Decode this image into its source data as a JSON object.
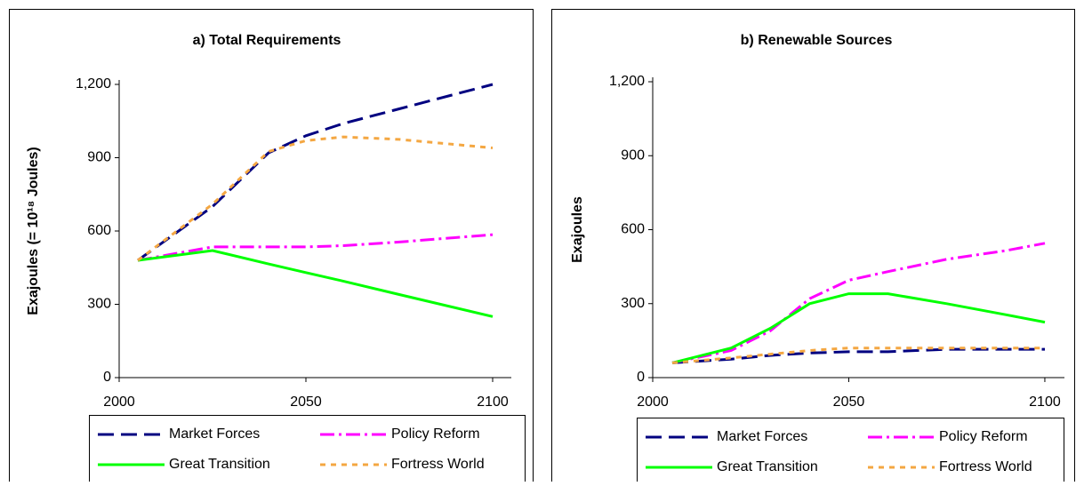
{
  "chart_data": [
    {
      "type": "line",
      "title": "a) Total Requirements",
      "y_label": "Exajoules (= 10¹⁸ Joules)",
      "x": [
        2005,
        2025,
        2040,
        2050,
        2060,
        2075,
        2100
      ],
      "xlim": [
        2000,
        2105
      ],
      "xticks": [
        2000,
        2050,
        2100
      ],
      "ylim": [
        0,
        1200
      ],
      "yticks": [
        0,
        300,
        600,
        900,
        {
          "value": 1200,
          "label": "1,200"
        }
      ],
      "legend": "bottom",
      "series": [
        {
          "name": "Market Forces",
          "color": "#000080",
          "values": [
            480,
            700,
            920,
            990,
            1040,
            1100,
            1200
          ]
        },
        {
          "name": "Policy Reform",
          "color": "#ff00ff",
          "values": [
            480,
            535,
            535,
            535,
            540,
            555,
            585
          ]
        },
        {
          "name": "Great Transition",
          "color": "#00ff00",
          "values": [
            480,
            520,
            465,
            430,
            395,
            340,
            250
          ]
        },
        {
          "name": "Fortress World",
          "color": "#f4a742",
          "values": [
            480,
            710,
            925,
            970,
            985,
            975,
            940
          ]
        }
      ]
    },
    {
      "type": "line",
      "title": "b) Renewable Sources",
      "y_label": "Exajoules",
      "x": [
        2005,
        2020,
        2030,
        2040,
        2050,
        2060,
        2075,
        2090,
        2100
      ],
      "xlim": [
        2000,
        2105
      ],
      "xticks": [
        2000,
        2050,
        2100
      ],
      "ylim": [
        0,
        1200
      ],
      "yticks": [
        0,
        300,
        600,
        900,
        {
          "value": 1200,
          "label": "1,200"
        }
      ],
      "legend": "bottom",
      "series": [
        {
          "name": "Market Forces",
          "color": "#000080",
          "values": [
            60,
            75,
            90,
            100,
            105,
            105,
            115,
            115,
            115
          ]
        },
        {
          "name": "Policy Reform",
          "color": "#ff00ff",
          "values": [
            60,
            110,
            190,
            320,
            395,
            430,
            480,
            515,
            545
          ]
        },
        {
          "name": "Great Transition",
          "color": "#00ff00",
          "values": [
            60,
            120,
            200,
            300,
            340,
            340,
            300,
            255,
            225
          ]
        },
        {
          "name": "Fortress World",
          "color": "#f4a742",
          "values": [
            60,
            80,
            95,
            110,
            120,
            120,
            120,
            120,
            120
          ]
        }
      ]
    }
  ]
}
